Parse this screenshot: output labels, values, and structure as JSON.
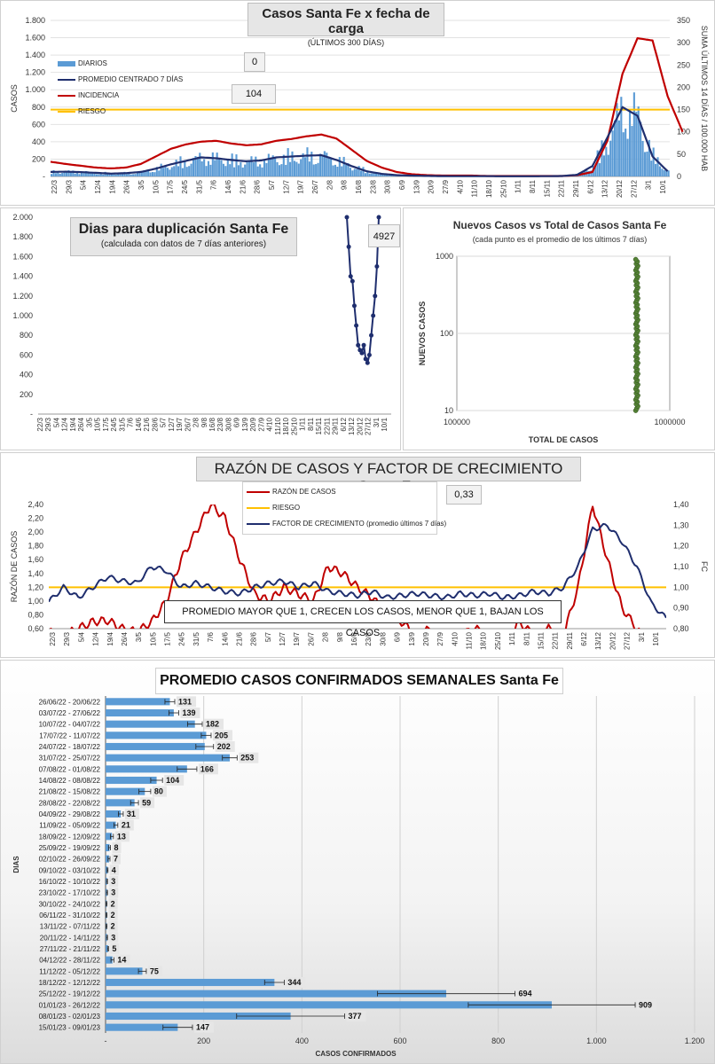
{
  "chart_data": [
    {
      "type": "bar+line",
      "title": "Casos Santa Fe x fecha de carga",
      "subtitle": "(ÚLTIMOS 300 DÍAS)",
      "ylabel": "CASOS",
      "y2label": "SUMA ÚLTIMOS 14 DÍAS / 100.000 HAB",
      "ylim": [
        0,
        1800
      ],
      "y2lim": [
        0,
        350
      ],
      "y_ticks": [
        "-",
        "200",
        "400",
        "600",
        "800",
        "1.000",
        "1.200",
        "1.400",
        "1.600",
        "1.800"
      ],
      "y2_ticks": [
        "0",
        "50",
        "100",
        "150",
        "200",
        "250",
        "300",
        "350"
      ],
      "x_ticks": [
        "22/3",
        "29/3",
        "5/4",
        "12/4",
        "19/4",
        "26/4",
        "3/5",
        "10/5",
        "17/5",
        "24/5",
        "31/5",
        "7/6",
        "14/6",
        "21/6",
        "28/6",
        "5/7",
        "12/7",
        "19/7",
        "26/7",
        "2/8",
        "9/8",
        "16/8",
        "23/8",
        "30/8",
        "6/9",
        "13/9",
        "20/9",
        "27/9",
        "4/10",
        "11/10",
        "18/10",
        "25/10",
        "1/11",
        "8/11",
        "15/11",
        "22/11",
        "29/11",
        "6/12",
        "13/12",
        "20/12",
        "27/12",
        "3/1",
        "10/1"
      ],
      "legend": {
        "diarios": "DIARIOS",
        "promedio": "PROMEDIO CENTRADO 7 DÍAS",
        "incidencia": "INCIDENCIA",
        "riesgo": "RIESGO"
      },
      "callout_diarios": "0",
      "callout_promedio": "104",
      "riesgo_level": 150,
      "weekly_promedio": [
        52,
        55,
        50,
        42,
        33,
        38,
        52,
        90,
        140,
        180,
        220,
        210,
        190,
        175,
        185,
        220,
        230,
        240,
        245,
        190,
        120,
        60,
        30,
        15,
        10,
        6,
        4,
        3,
        3,
        3,
        2,
        2,
        2,
        3,
        5,
        20,
        120,
        450,
        800,
        700,
        230,
        60
      ],
      "weekly_incidencia": [
        33,
        28,
        24,
        20,
        18,
        20,
        28,
        45,
        62,
        72,
        78,
        80,
        74,
        70,
        72,
        80,
        84,
        90,
        94,
        85,
        60,
        35,
        20,
        10,
        5,
        3,
        2,
        2,
        2,
        1,
        1,
        1,
        1,
        1,
        1,
        3,
        10,
        80,
        230,
        310,
        305,
        180,
        100
      ]
    },
    {
      "type": "line",
      "title": "Dias para duplicación Santa Fe",
      "subtitle": "(calculada con datos de 7 días anteriores)",
      "ylim": [
        0,
        2000
      ],
      "y_ticks": [
        "-",
        "200",
        "400",
        "600",
        "800",
        "1.000",
        "1.200",
        "1.400",
        "1.600",
        "1.800",
        "2.000"
      ],
      "x_ticks": [
        "22/3",
        "29/3",
        "5/4",
        "12/4",
        "19/4",
        "26/4",
        "3/5",
        "10/5",
        "17/5",
        "24/5",
        "31/5",
        "7/6",
        "14/6",
        "21/6",
        "28/6",
        "5/7",
        "12/7",
        "19/7",
        "26/7",
        "2/8",
        "9/8",
        "16/8",
        "23/8",
        "30/8",
        "6/9",
        "13/9",
        "20/9",
        "27/9",
        "4/10",
        "11/10",
        "18/10",
        "25/10",
        "1/11",
        "8/11",
        "15/11",
        "22/11",
        "29/11",
        "6/12",
        "13/12",
        "20/12",
        "27/12",
        "3/1",
        "10/1"
      ],
      "callout": "4927",
      "series_tail": [
        2000,
        1700,
        1400,
        1350,
        1100,
        900,
        700,
        650,
        620,
        700,
        560,
        520,
        600,
        800,
        1000,
        1200,
        1500,
        2000
      ]
    },
    {
      "type": "scatter",
      "title": "Nuevos Casos vs Total de Casos Santa Fe",
      "subtitle": "(cada punto es el promedio de los últimos 7 días)",
      "xlabel": "TOTAL DE CASOS",
      "ylabel": "NUEVOS CASOS",
      "x_scale": "log",
      "y_scale": "log",
      "x_ticks": [
        "100000",
        "1000000"
      ],
      "y_ticks": [
        "10",
        "100",
        "1000"
      ],
      "x_point": 700000,
      "y_range": [
        10,
        909
      ]
    },
    {
      "type": "line",
      "title": "RAZÓN DE CASOS Y FACTOR DE CRECIMIENTO Santa Fe",
      "ylabel": "RAZÓN DE CASOS",
      "y2label": "FC",
      "ylim": [
        0.6,
        2.4
      ],
      "y2lim": [
        0.8,
        1.4
      ],
      "y_ticks": [
        "0,60",
        "0,80",
        "1,00",
        "1,20",
        "1,40",
        "1,60",
        "1,80",
        "2,00",
        "2,20",
        "2,40"
      ],
      "y2_ticks": [
        "0,80",
        "0,90",
        "1,00",
        "1,10",
        "1,20",
        "1,30",
        "1,40"
      ],
      "x_ticks": [
        "22/3",
        "29/3",
        "5/4",
        "12/4",
        "19/4",
        "26/4",
        "3/5",
        "10/5",
        "17/5",
        "24/5",
        "31/5",
        "7/6",
        "14/6",
        "21/6",
        "28/6",
        "5/7",
        "12/7",
        "19/7",
        "26/7",
        "2/8",
        "9/8",
        "16/8",
        "23/8",
        "30/8",
        "6/9",
        "13/9",
        "20/9",
        "27/9",
        "4/10",
        "11/10",
        "18/10",
        "25/10",
        "1/11",
        "8/11",
        "15/11",
        "22/11",
        "29/11",
        "6/12",
        "13/12",
        "20/12",
        "27/12",
        "3/1",
        "10/1"
      ],
      "legend": {
        "razon": "RAZÓN DE CASOS",
        "riesgo": "RIESGO",
        "fc": "FACTOR DE CRECIMIENTO (promedio últimos 7 días)"
      },
      "callout": "0,33",
      "note": "PROMEDIO MAYOR QUE 1, CRECEN LOS CASOS, MENOR QUE 1, BAJAN LOS CASOS",
      "riesgo_level": 1.2,
      "razon": [
        0.55,
        0.5,
        0.6,
        0.7,
        0.72,
        0.6,
        0.55,
        0.7,
        1.0,
        1.6,
        2.0,
        2.4,
        2.2,
        1.6,
        1.1,
        1.0,
        1.2,
        1.1,
        1.0,
        1.5,
        1.4,
        1.2,
        1.05,
        0.8,
        0.7,
        0.5,
        0.6,
        0.4,
        0.5,
        0.6,
        0.5,
        0.4,
        0.7,
        0.5,
        0.6,
        0.5,
        1.2,
        2.4,
        1.6,
        0.9,
        0.6,
        0.3,
        0.5
      ],
      "fc": [
        0.93,
        1.0,
        0.95,
        1.0,
        1.05,
        1.03,
        1.02,
        1.1,
        1.08,
        1.0,
        1.02,
        1.0,
        0.98,
        0.97,
        1.0,
        1.02,
        1.03,
        1.0,
        1.02,
        0.98,
        0.97,
        0.96,
        0.98,
        0.95,
        0.96,
        0.97,
        0.96,
        0.95,
        0.97,
        0.96,
        0.97,
        0.95,
        0.96,
        0.98,
        0.97,
        1.0,
        1.1,
        1.28,
        1.3,
        1.22,
        1.1,
        0.92,
        0.85
      ]
    },
    {
      "type": "bar",
      "orientation": "horizontal",
      "title": "PROMEDIO CASOS CONFIRMADOS SEMANALES Santa Fe",
      "xlabel": "CASOS CONFIRMADOS",
      "ylabel": "DIAS",
      "xlim": [
        0,
        1200
      ],
      "x_ticks": [
        "-",
        "200",
        "400",
        "600",
        "800",
        "1.000",
        "1.200"
      ],
      "categories": [
        "26/06/22 - 20/06/22",
        "03/07/22 - 27/06/22",
        "10/07/22 - 04/07/22",
        "17/07/22 - 11/07/22",
        "24/07/22 - 18/07/22",
        "31/07/22 - 25/07/22",
        "07/08/22 - 01/08/22",
        "14/08/22 - 08/08/22",
        "21/08/22 - 15/08/22",
        "28/08/22 - 22/08/22",
        "04/09/22 - 29/08/22",
        "11/09/22 - 05/09/22",
        "18/09/22 - 12/09/22",
        "25/09/22 - 19/09/22",
        "02/10/22 - 26/09/22",
        "09/10/22 - 03/10/22",
        "16/10/22 - 10/10/22",
        "23/10/22 - 17/10/22",
        "30/10/22 - 24/10/22",
        "06/11/22 - 31/10/22",
        "13/11/22 - 07/11/22",
        "20/11/22 - 14/11/22",
        "27/11/22 - 21/11/22",
        "04/12/22 - 28/11/22",
        "11/12/22 - 05/12/22",
        "18/12/22 - 12/12/22",
        "25/12/22 - 19/12/22",
        "01/01/23 - 26/12/22",
        "08/01/23 - 02/01/23",
        "15/01/23 - 09/01/23"
      ],
      "values": [
        131,
        139,
        182,
        205,
        202,
        253,
        166,
        104,
        80,
        59,
        31,
        21,
        13,
        8,
        7,
        4,
        3,
        3,
        2,
        2,
        2,
        3,
        5,
        14,
        75,
        344,
        694,
        909,
        377,
        147
      ],
      "value_labels": [
        "131",
        "139",
        "182",
        "205",
        "202",
        "253",
        "166",
        "104",
        "80",
        "59",
        "31",
        "21",
        "13",
        "8",
        "7",
        "4",
        "3",
        "3",
        "2",
        "2",
        "2",
        "3",
        "5",
        "14",
        "75",
        "344",
        "694",
        "909",
        "377",
        "147"
      ],
      "errors": [
        10,
        10,
        15,
        10,
        18,
        15,
        20,
        12,
        12,
        8,
        5,
        4,
        3,
        2,
        2,
        1,
        1,
        1,
        1,
        1,
        1,
        1,
        1,
        3,
        8,
        20,
        140,
        170,
        110,
        30
      ]
    }
  ]
}
